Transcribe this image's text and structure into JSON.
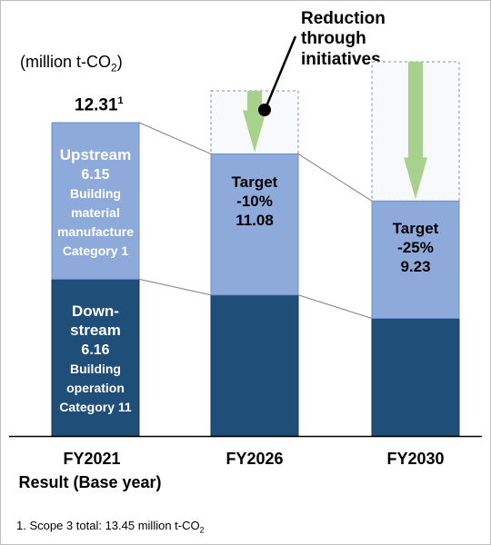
{
  "chart_data": {
    "type": "bar",
    "stacked": true,
    "unit_label": "(million t-CO",
    "unit_sub": "2",
    "unit_tail": ")",
    "categories": [
      {
        "label": "FY2021",
        "sublabel": "Result (Base year)"
      },
      {
        "label": "FY2026",
        "sublabel": ""
      },
      {
        "label": "FY2030",
        "sublabel": ""
      }
    ],
    "base": {
      "total_label": "12.31",
      "total_sup": "1",
      "segments": [
        {
          "key": "downstream",
          "value": 6.16,
          "color": "#1f4e79",
          "lines": [
            "Down-",
            "stream",
            "6.16",
            "Building",
            "operation",
            "Category 11"
          ]
        },
        {
          "key": "upstream",
          "value": 6.15,
          "color": "#8eaadb",
          "lines": [
            "Upstream",
            "6.15",
            "Building",
            "material",
            "manufacture",
            "Category 1"
          ]
        }
      ]
    },
    "targets": [
      {
        "category": "FY2026",
        "total": 11.08,
        "downstream": 5.54,
        "upstream": 5.54,
        "lines": [
          "Target",
          "-10%",
          "11.08"
        ]
      },
      {
        "category": "FY2030",
        "total": 9.23,
        "downstream": 4.62,
        "upstream": 4.61,
        "lines": [
          "Target",
          "-25%",
          "9.23"
        ]
      }
    ],
    "reduction_label": [
      "Reduction",
      "through",
      "initiatives"
    ],
    "ylim": [
      0,
      12.31
    ],
    "colors": {
      "downstream": "#1f4e79",
      "upstream": "#8eaadb",
      "arrow": "#a9d18e",
      "reduction_bg": "#f7f9fb"
    }
  },
  "footnote": {
    "prefix": "1. Scope 3 total: 13.45 million t-CO",
    "sub": "2"
  }
}
